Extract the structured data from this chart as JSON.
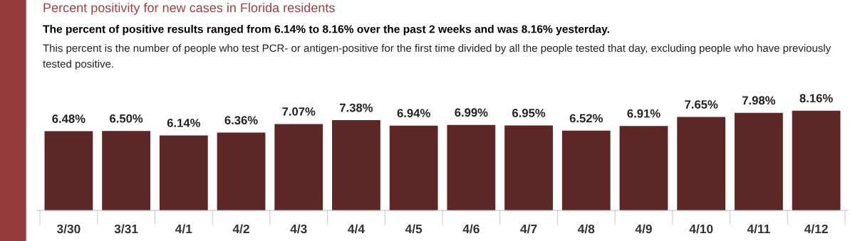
{
  "chart_data": {
    "type": "bar",
    "title": "Percent positivity for new cases in Florida residents",
    "subtitle": "The percent of positive results ranged from 6.14% to 8.16% over the past 2 weeks and was 8.16% yesterday.",
    "annotations": [
      "This percent is the number of people who test PCR- or antigen-positive for the first time divided by all the people tested that day, excluding people who have previously tested positive."
    ],
    "categories": [
      "3/30",
      "3/31",
      "4/1",
      "4/2",
      "4/3",
      "4/4",
      "4/5",
      "4/6",
      "4/7",
      "4/8",
      "4/9",
      "4/10",
      "4/11",
      "4/12"
    ],
    "values": [
      6.48,
      6.5,
      6.14,
      6.36,
      7.07,
      7.38,
      6.94,
      6.99,
      6.95,
      6.52,
      6.91,
      7.65,
      7.98,
      8.16
    ],
    "value_labels": [
      "6.48%",
      "6.50%",
      "6.14%",
      "6.36%",
      "7.07%",
      "7.38%",
      "6.94%",
      "6.99%",
      "6.95%",
      "6.52%",
      "6.91%",
      "7.65%",
      "7.98%",
      "8.16%"
    ],
    "color": "#5c2725",
    "tick_labels": "x",
    "grid": false,
    "legend": false
  }
}
